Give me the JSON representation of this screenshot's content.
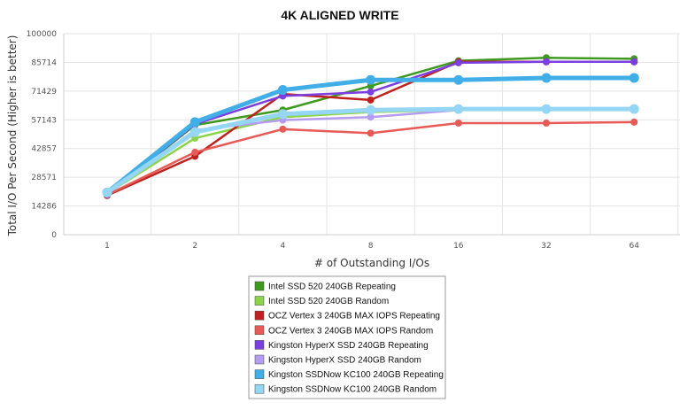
{
  "chart_data": {
    "type": "line",
    "title": "4K ALIGNED WRITE",
    "xlabel": "# of Outstanding I/Os",
    "ylabel": "Total I/O Per Second (Higher is better)",
    "categories": [
      "1",
      "2",
      "4",
      "8",
      "16",
      "32",
      "64"
    ],
    "y_ticks": [
      "100000",
      "85714",
      "71429",
      "57143",
      "42857",
      "28571",
      "14286",
      "0"
    ],
    "ylim": [
      0,
      100000
    ],
    "grid": true,
    "legend_position": "bottom",
    "series": [
      {
        "name": "Intel SSD 520 240GB Repeating",
        "color": "#3e9a1f",
        "width": 2.5,
        "values": [
          20000,
          54500,
          62000,
          74000,
          86500,
          88000,
          87500
        ]
      },
      {
        "name": "Intel SSD 520 240GB Random",
        "color": "#8cd34c",
        "width": 2.5,
        "values": [
          20500,
          48000,
          58500,
          61000,
          62000,
          62000,
          62000
        ]
      },
      {
        "name": "OCZ Vertex 3 240GB MAX IOPS Repeating",
        "color": "#c0201e",
        "width": 2.5,
        "values": [
          19500,
          39000,
          70000,
          67000,
          86000,
          86000,
          86000
        ]
      },
      {
        "name": "OCZ Vertex 3 240GB MAX IOPS Random",
        "color": "#e85a55",
        "width": 2.5,
        "values": [
          19800,
          41000,
          52500,
          50500,
          55500,
          55500,
          56000
        ]
      },
      {
        "name": "Kingston HyperX SSD 240GB Repeating",
        "color": "#7b3fe0",
        "width": 2.5,
        "values": [
          20000,
          55000,
          69000,
          71000,
          85500,
          86000,
          86000
        ]
      },
      {
        "name": "Kingston HyperX SSD 240GB Random",
        "color": "#b49cf0",
        "width": 2.5,
        "values": [
          20500,
          52000,
          57000,
          58500,
          62000,
          62000,
          62000
        ]
      },
      {
        "name": "Kingston SSDNow KC100 240GB Repeating",
        "color": "#42aee8",
        "width": 5,
        "values": [
          21000,
          56000,
          72000,
          77000,
          77000,
          78000,
          78000
        ]
      },
      {
        "name": "Kingston SSDNow KC100 240GB Random",
        "color": "#96d6f5",
        "width": 5,
        "values": [
          21000,
          51000,
          60000,
          62000,
          62500,
          62500,
          62500
        ]
      }
    ]
  }
}
